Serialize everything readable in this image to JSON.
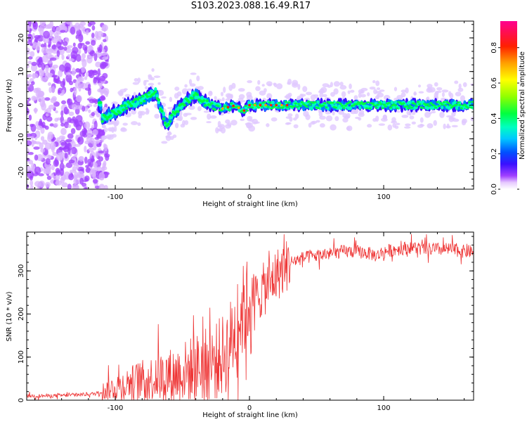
{
  "title": "S103.2023.088.16.49.R17",
  "chart_data": [
    {
      "type": "heatmap",
      "xlabel": "Height of straight line (km)",
      "ylabel": "Frequency (Hz)",
      "xlim": [
        -166,
        167
      ],
      "ylim": [
        -25,
        25
      ],
      "x_ticks": [
        -100,
        0,
        100
      ],
      "y_ticks": [
        -20,
        -10,
        0,
        10,
        20
      ],
      "colorbar": {
        "label": "Normalized spectral amplitude",
        "range": [
          0,
          0.95
        ],
        "ticks": [
          0.0,
          0.2,
          0.4,
          0.6,
          0.8
        ]
      },
      "ridge": [
        {
          "x": -110,
          "y": -4
        },
        {
          "x": -100,
          "y": -2
        },
        {
          "x": -90,
          "y": 0
        },
        {
          "x": -78,
          "y": 2
        },
        {
          "x": -70,
          "y": 4
        },
        {
          "x": -62,
          "y": -6
        },
        {
          "x": -55,
          "y": -2
        },
        {
          "x": -48,
          "y": 1
        },
        {
          "x": -40,
          "y": 3
        },
        {
          "x": -30,
          "y": 0
        },
        {
          "x": -20,
          "y": -1
        },
        {
          "x": -10,
          "y": 0
        },
        {
          "x": -5,
          "y": -2
        },
        {
          "x": 0,
          "y": 0
        },
        {
          "x": 50,
          "y": 0
        },
        {
          "x": 100,
          "y": 0
        },
        {
          "x": 167,
          "y": 0
        }
      ]
    },
    {
      "type": "line",
      "xlabel": "Height of straight line (km)",
      "ylabel": "SNR (10 * v/v)",
      "xlim": [
        -166,
        167
      ],
      "ylim": [
        0,
        390
      ],
      "x_ticks": [
        -100,
        0,
        100
      ],
      "y_ticks": [
        0,
        100,
        200,
        300
      ],
      "series": [
        {
          "color": "#ee3333",
          "x": [
            -166,
            -150,
            -130,
            -115,
            -105,
            -95,
            -85,
            -75,
            -65,
            -55,
            -45,
            -35,
            -25,
            -18,
            -12,
            -8,
            -4,
            0,
            5,
            10,
            15,
            20,
            25,
            30,
            40,
            50,
            60,
            70,
            80,
            90,
            95,
            100,
            110,
            120,
            130,
            140,
            150,
            160,
            167
          ],
          "y": [
            10,
            10,
            12,
            15,
            25,
            35,
            45,
            50,
            55,
            60,
            70,
            80,
            90,
            110,
            150,
            190,
            210,
            230,
            240,
            255,
            270,
            290,
            305,
            320,
            330,
            335,
            340,
            345,
            345,
            340,
            335,
            345,
            350,
            355,
            350,
            350,
            350,
            345,
            345
          ]
        }
      ]
    }
  ]
}
